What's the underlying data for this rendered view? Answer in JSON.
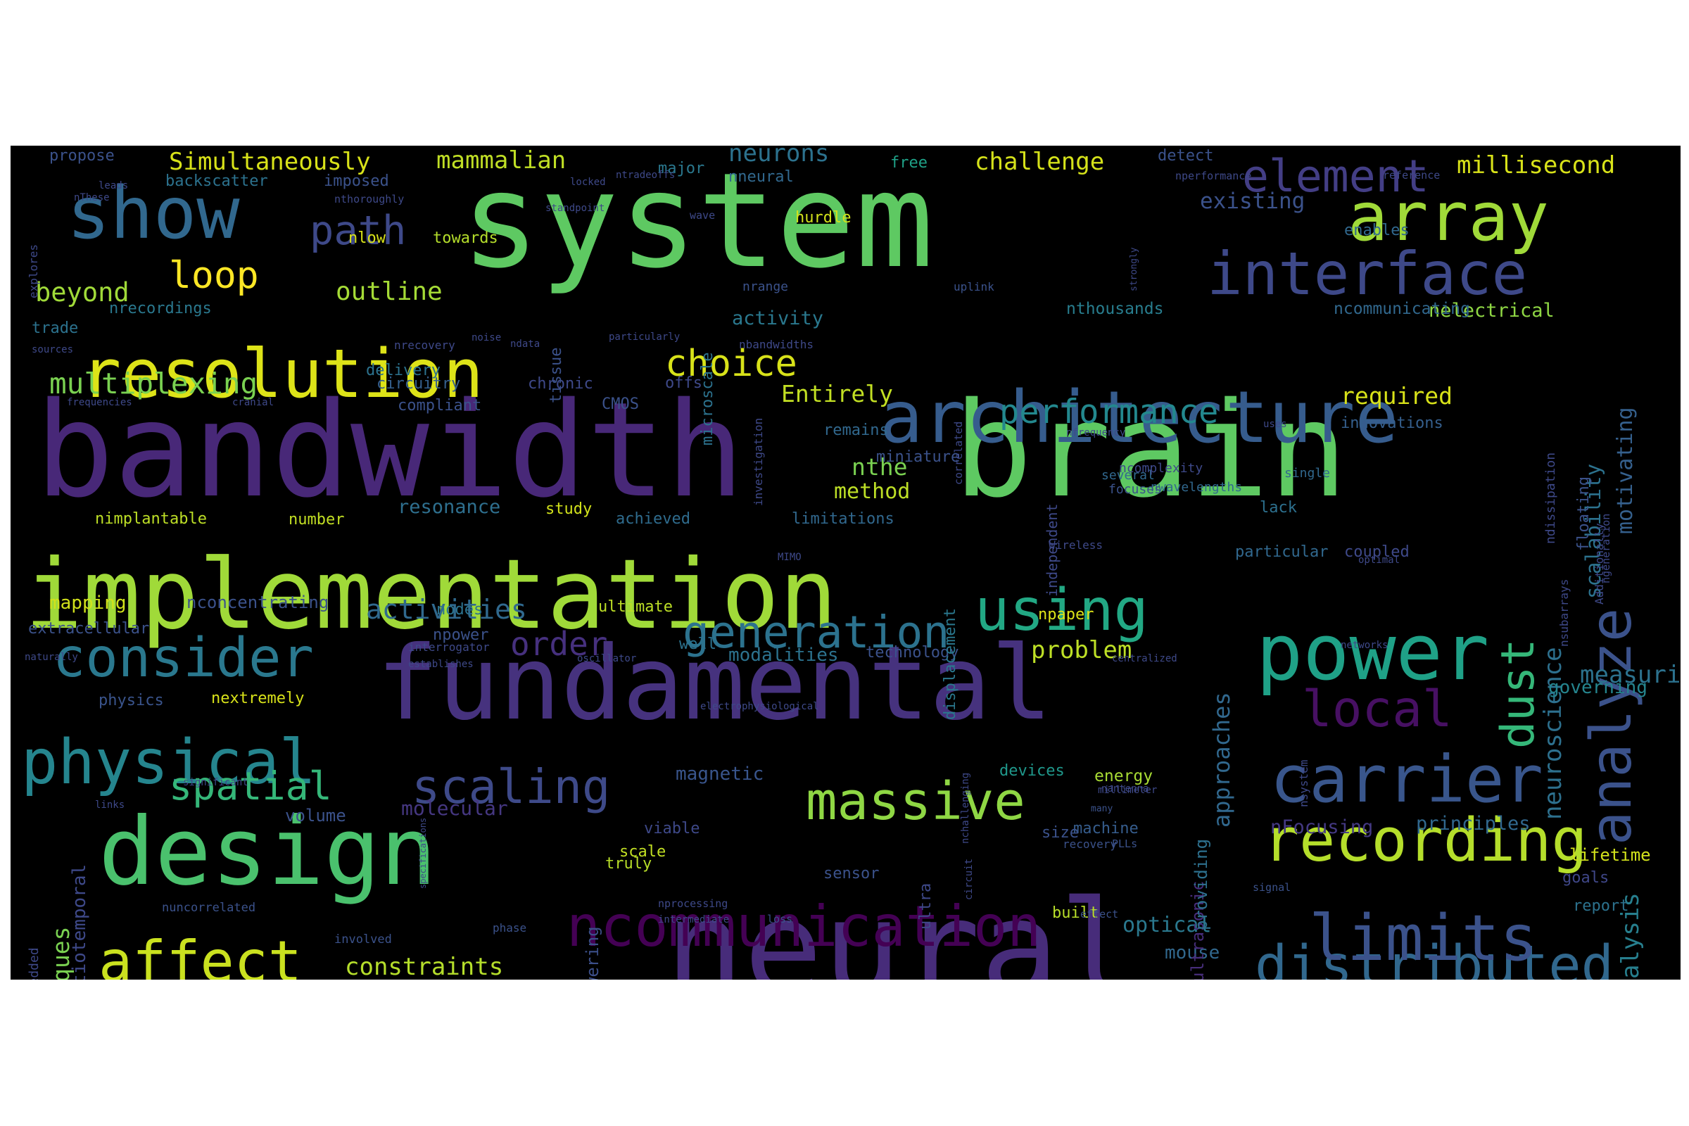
{
  "cloud": {
    "words": [
      {
        "text": "system",
        "color": "#5ec962"
      },
      {
        "text": "bandwidth",
        "color": "#482878"
      },
      {
        "text": "brain",
        "color": "#5ec962"
      },
      {
        "text": "neural",
        "color": "#472c7a"
      },
      {
        "text": "fundamental",
        "color": "#46327e"
      },
      {
        "text": "implementation",
        "color": "#a0da39"
      },
      {
        "text": "design",
        "color": "#4ac16d"
      },
      {
        "text": "power",
        "color": "#1fa187"
      },
      {
        "text": "architecture",
        "color": "#365c8d"
      },
      {
        "text": "array",
        "color": "#a0da39"
      },
      {
        "text": "show",
        "color": "#31688e"
      },
      {
        "text": "resolution",
        "color": "#dde318"
      },
      {
        "text": "carrier",
        "color": "#39568c"
      },
      {
        "text": "ncommunication",
        "color": "#440154"
      },
      {
        "text": "interface",
        "color": "#3e4989"
      },
      {
        "text": "recording",
        "color": "#b5de2b"
      },
      {
        "text": "physical",
        "color": "#25858e"
      },
      {
        "text": "consider",
        "color": "#2a788e"
      },
      {
        "text": "distributed",
        "color": "#31688e"
      },
      {
        "text": "limits",
        "color": "#3b528b"
      },
      {
        "text": "affect",
        "color": "#cae11f"
      },
      {
        "text": "massive",
        "color": "#8fd744"
      },
      {
        "text": "using",
        "color": "#22a884"
      },
      {
        "text": "generation",
        "color": "#2c728e"
      },
      {
        "text": "scaling",
        "color": "#3e4a89"
      },
      {
        "text": "local",
        "color": "#471063"
      },
      {
        "text": "analyze",
        "color": "#3b528b"
      },
      {
        "text": "path",
        "color": "#3e4989"
      },
      {
        "text": "element",
        "color": "#433e85"
      },
      {
        "text": "dust",
        "color": "#35b779"
      },
      {
        "text": "spatial",
        "color": "#35b779"
      },
      {
        "text": "choice",
        "color": "#d8e219"
      },
      {
        "text": "performance",
        "color": "#23888e"
      },
      {
        "text": "loop",
        "color": "#fde725"
      },
      {
        "text": "multiplexing",
        "color": "#7ad151"
      },
      {
        "text": "order",
        "color": "#46307e"
      },
      {
        "text": "outline",
        "color": "#a5db36"
      },
      {
        "text": "beyond",
        "color": "#a0da39"
      },
      {
        "text": "activities",
        "color": "#30698e"
      },
      {
        "text": "problem",
        "color": "#bddf26"
      },
      {
        "text": "measuring",
        "color": "#2c728e"
      },
      {
        "text": "neuroscience",
        "color": "#2d708e"
      },
      {
        "text": "analysis",
        "color": "#277f8e"
      },
      {
        "text": "approaches",
        "color": "#31688e"
      },
      {
        "text": "ntechniques",
        "color": "#7ad151"
      },
      {
        "text": "constraints",
        "color": "#b5de2b"
      },
      {
        "text": "Simultaneously",
        "color": "#d8e219"
      },
      {
        "text": "mammalian",
        "color": "#c0df25"
      },
      {
        "text": "millisecond",
        "color": "#d8e219"
      },
      {
        "text": "neurons",
        "color": "#2c728e"
      },
      {
        "text": "challenge",
        "color": "#d5e21a"
      },
      {
        "text": "existing",
        "color": "#3b528b"
      },
      {
        "text": "motivating",
        "color": "#35608d"
      },
      {
        "text": "Entirely",
        "color": "#c2df23"
      },
      {
        "text": "required",
        "color": "#d8e219"
      },
      {
        "text": "nthe",
        "color": "#7ad151"
      },
      {
        "text": "method",
        "color": "#bddf26"
      },
      {
        "text": "scalability",
        "color": "#2c728e"
      },
      {
        "text": "resonance",
        "color": "#2e6f8e"
      },
      {
        "text": "principles",
        "color": "#31688e"
      },
      {
        "text": "nFocusing",
        "color": "#443983"
      },
      {
        "text": "lifetime",
        "color": "#d2e21b"
      },
      {
        "text": "optical",
        "color": "#2a788e"
      },
      {
        "text": "mouse",
        "color": "#31688e"
      },
      {
        "text": "activity",
        "color": "#2a788e"
      },
      {
        "text": "nelectrical",
        "color": "#8fd744"
      },
      {
        "text": "nthousands",
        "color": "#287d8e"
      },
      {
        "text": "ncommunicating",
        "color": "#31688e"
      },
      {
        "text": "governing",
        "color": "#25858e"
      },
      {
        "text": "mapping",
        "color": "#d2e21b"
      },
      {
        "text": "modalities",
        "color": "#2c728e"
      },
      {
        "text": "nconcentrating",
        "color": "#3b528b"
      },
      {
        "text": "magnetic",
        "color": "#39558c"
      },
      {
        "text": "molecular",
        "color": "#453781"
      },
      {
        "text": "devices",
        "color": "#1f988b"
      },
      {
        "text": "energy",
        "color": "#a8db34"
      },
      {
        "text": "volume",
        "color": "#3b528b"
      },
      {
        "text": "built",
        "color": "#b8de29"
      },
      {
        "text": "machine",
        "color": "#365d8d"
      },
      {
        "text": "goals",
        "color": "#3f4788"
      },
      {
        "text": "report",
        "color": "#2c728e"
      },
      {
        "text": "ultrasonic",
        "color": "#472d7b"
      },
      {
        "text": "providing",
        "color": "#2d708e"
      },
      {
        "text": "powering",
        "color": "#3c4f8a"
      },
      {
        "text": "nimplantable",
        "color": "#bddf26"
      },
      {
        "text": "number",
        "color": "#c2df23"
      },
      {
        "text": "achieved",
        "color": "#2f6c8e"
      },
      {
        "text": "limitations",
        "color": "#31688e"
      },
      {
        "text": "lack",
        "color": "#2d708e"
      },
      {
        "text": "particular",
        "color": "#31688e"
      },
      {
        "text": "coupled",
        "color": "#3e4989"
      },
      {
        "text": "physics",
        "color": "#3a548c"
      },
      {
        "text": "nextremely",
        "color": "#d8e219"
      },
      {
        "text": "size",
        "color": "#3b528b"
      },
      {
        "text": "sensor",
        "color": "#3b528b"
      },
      {
        "text": "scale",
        "color": "#c2df23"
      },
      {
        "text": "truly",
        "color": "#b8de29"
      },
      {
        "text": "viable",
        "color": "#3e4989"
      },
      {
        "text": "hurdle",
        "color": "#d2e21b"
      },
      {
        "text": "enables",
        "color": "#31688e"
      },
      {
        "text": "free",
        "color": "#1fa187"
      },
      {
        "text": "detect",
        "color": "#3b528b"
      },
      {
        "text": "major",
        "color": "#2a788e"
      },
      {
        "text": "nneural",
        "color": "#31688e"
      },
      {
        "text": "propose",
        "color": "#3b528b"
      },
      {
        "text": "backscatter",
        "color": "#2c728e"
      },
      {
        "text": "imposed",
        "color": "#3b528b"
      },
      {
        "text": "nlow",
        "color": "#d8e219"
      },
      {
        "text": "towards",
        "color": "#b5de2b"
      },
      {
        "text": "nrecordings",
        "color": "#2a788e"
      },
      {
        "text": "trade",
        "color": "#2c728e"
      },
      {
        "text": "delivery",
        "color": "#2c728e"
      },
      {
        "text": "circuitry",
        "color": "#355f8d"
      },
      {
        "text": "chronic",
        "color": "#3e4989"
      },
      {
        "text": "offs",
        "color": "#3e4989"
      },
      {
        "text": "compliant",
        "color": "#3b528b"
      },
      {
        "text": "CMOS",
        "color": "#3b528b"
      },
      {
        "text": "remains",
        "color": "#31688e"
      },
      {
        "text": "miniature",
        "color": "#3b528b"
      },
      {
        "text": "innovations",
        "color": "#355f8d"
      },
      {
        "text": "study",
        "color": "#d2e21b"
      },
      {
        "text": "ultimate",
        "color": "#bddf26"
      },
      {
        "text": "nodes",
        "color": "#2c728e"
      },
      {
        "text": "npower",
        "color": "#3b528b"
      },
      {
        "text": "extracellular",
        "color": "#3b528b"
      },
      {
        "text": "technology",
        "color": "#3b528b"
      },
      {
        "text": "npaper",
        "color": "#dde318"
      },
      {
        "text": "well",
        "color": "#2c728e"
      },
      {
        "text": "nwavelengths",
        "color": "#31688e"
      },
      {
        "text": "single",
        "color": "#31688e"
      },
      {
        "text": "several",
        "color": "#31688e"
      },
      {
        "text": "focuses",
        "color": "#3b528b"
      },
      {
        "text": "independent",
        "color": "#3e4989"
      },
      {
        "text": "floating",
        "color": "#3b528b"
      },
      {
        "text": "nsubarrays",
        "color": "#3e4989"
      },
      {
        "text": "ndissipation",
        "color": "#3e4989"
      },
      {
        "text": "displacement",
        "color": "#2a788e"
      },
      {
        "text": "microscale",
        "color": "#2c728e"
      },
      {
        "text": "tissue",
        "color": "#3b528b"
      },
      {
        "text": "nrange",
        "color": "#3b528b"
      },
      {
        "text": "uplink",
        "color": "#3b528b"
      },
      {
        "text": "ncomplexity",
        "color": "#3e4989"
      },
      {
        "text": "embedded",
        "color": "#3e4989"
      },
      {
        "text": "spatiotemporal",
        "color": "#3e4989"
      },
      {
        "text": "nuncorrelated",
        "color": "#3b528b"
      },
      {
        "text": "involved",
        "color": "#3b528b"
      },
      {
        "text": "phase",
        "color": "#3b528b"
      },
      {
        "text": "loss",
        "color": "#3b528b"
      },
      {
        "text": "effect",
        "color": "#3b528b"
      },
      {
        "text": "signal",
        "color": "#3b528b"
      },
      {
        "text": "recovery",
        "color": "#3b528b"
      },
      {
        "text": "PLLs",
        "color": "#3b528b"
      },
      {
        "text": "many",
        "color": "#3b528b"
      },
      {
        "text": "ultra",
        "color": "#3e4989"
      },
      {
        "text": "circuit",
        "color": "#3e4989"
      },
      {
        "text": "nsystem",
        "color": "#3e4989"
      },
      {
        "text": "millimeter",
        "color": "#3e4989"
      },
      {
        "text": "centralized",
        "color": "#3e4989"
      },
      {
        "text": "networks",
        "color": "#3e4989"
      },
      {
        "text": "oscillator",
        "color": "#3e4989"
      },
      {
        "text": "establishes",
        "color": "#3e4989"
      },
      {
        "text": "nantenna",
        "color": "#3e4989"
      },
      {
        "text": "specifications",
        "color": "#3e4989"
      },
      {
        "text": "nchallenging",
        "color": "#3e4989"
      },
      {
        "text": "strongly",
        "color": "#3e4989"
      },
      {
        "text": "wave",
        "color": "#3e4989"
      },
      {
        "text": "standpoint",
        "color": "#3e4989"
      },
      {
        "text": "ntradeoffs",
        "color": "#3e4989"
      },
      {
        "text": "locked",
        "color": "#3e4989"
      },
      {
        "text": "nthoroughly",
        "color": "#3e4989"
      },
      {
        "text": "explores",
        "color": "#3e4989"
      },
      {
        "text": "leads",
        "color": "#3e4989"
      },
      {
        "text": "nThese",
        "color": "#3e4989"
      },
      {
        "text": "sources",
        "color": "#3e4989"
      },
      {
        "text": "nrecovery",
        "color": "#3e4989"
      },
      {
        "text": "nbandwidths",
        "color": "#3e4989"
      },
      {
        "text": "ndata",
        "color": "#3e4989"
      },
      {
        "text": "noise",
        "color": "#3e4989"
      },
      {
        "text": "particularly",
        "color": "#3e4989"
      },
      {
        "text": "frequencies",
        "color": "#3e4989"
      },
      {
        "text": "cranial",
        "color": "#3e4989"
      },
      {
        "text": "investigation",
        "color": "#3e4989"
      },
      {
        "text": "correlated",
        "color": "#3e4989"
      },
      {
        "text": "nfrequency",
        "color": "#3e4989"
      },
      {
        "text": "uses",
        "color": "#3e4989"
      },
      {
        "text": "ndifficulties",
        "color": "#3e4989"
      },
      {
        "text": "interrogator",
        "color": "#3e4989"
      },
      {
        "text": "electrophysiological",
        "color": "#3e4989"
      },
      {
        "text": "MIMO",
        "color": "#3e4989"
      },
      {
        "text": "Wireless",
        "color": "#3e4989"
      },
      {
        "text": "optimal",
        "color": "#3e4989"
      },
      {
        "text": "Additionally",
        "color": "#3e4989"
      },
      {
        "text": "ngeneration",
        "color": "#3e4989"
      },
      {
        "text": "reference",
        "color": "#3e4989"
      },
      {
        "text": "nperformance",
        "color": "#3e4989"
      },
      {
        "text": "significant",
        "color": "#3e4989"
      },
      {
        "text": "links",
        "color": "#3e4989"
      },
      {
        "text": "naturally",
        "color": "#3e4989"
      },
      {
        "text": "nprocessing",
        "color": "#3e4989"
      },
      {
        "text": "intermediate",
        "color": "#3e4989"
      }
    ]
  }
}
